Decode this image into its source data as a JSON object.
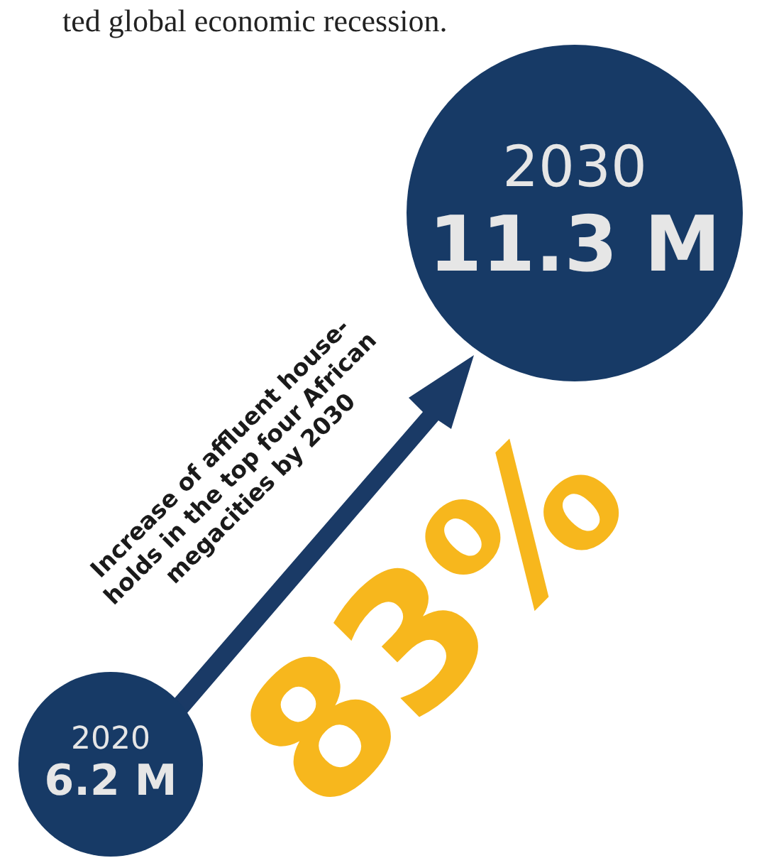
{
  "chart_data": {
    "type": "other",
    "categories": [
      "2020",
      "2030"
    ],
    "values": [
      6.2,
      11.3
    ],
    "value_labels": [
      "6.2 M",
      "11.3 M"
    ],
    "colors": [
      "#173a66",
      "#173a66"
    ],
    "annotations": [
      "ted global economic recession.",
      "Increase of affluent house-\nholds in the top four African\nmegacities by 2030",
      "83%"
    ]
  }
}
